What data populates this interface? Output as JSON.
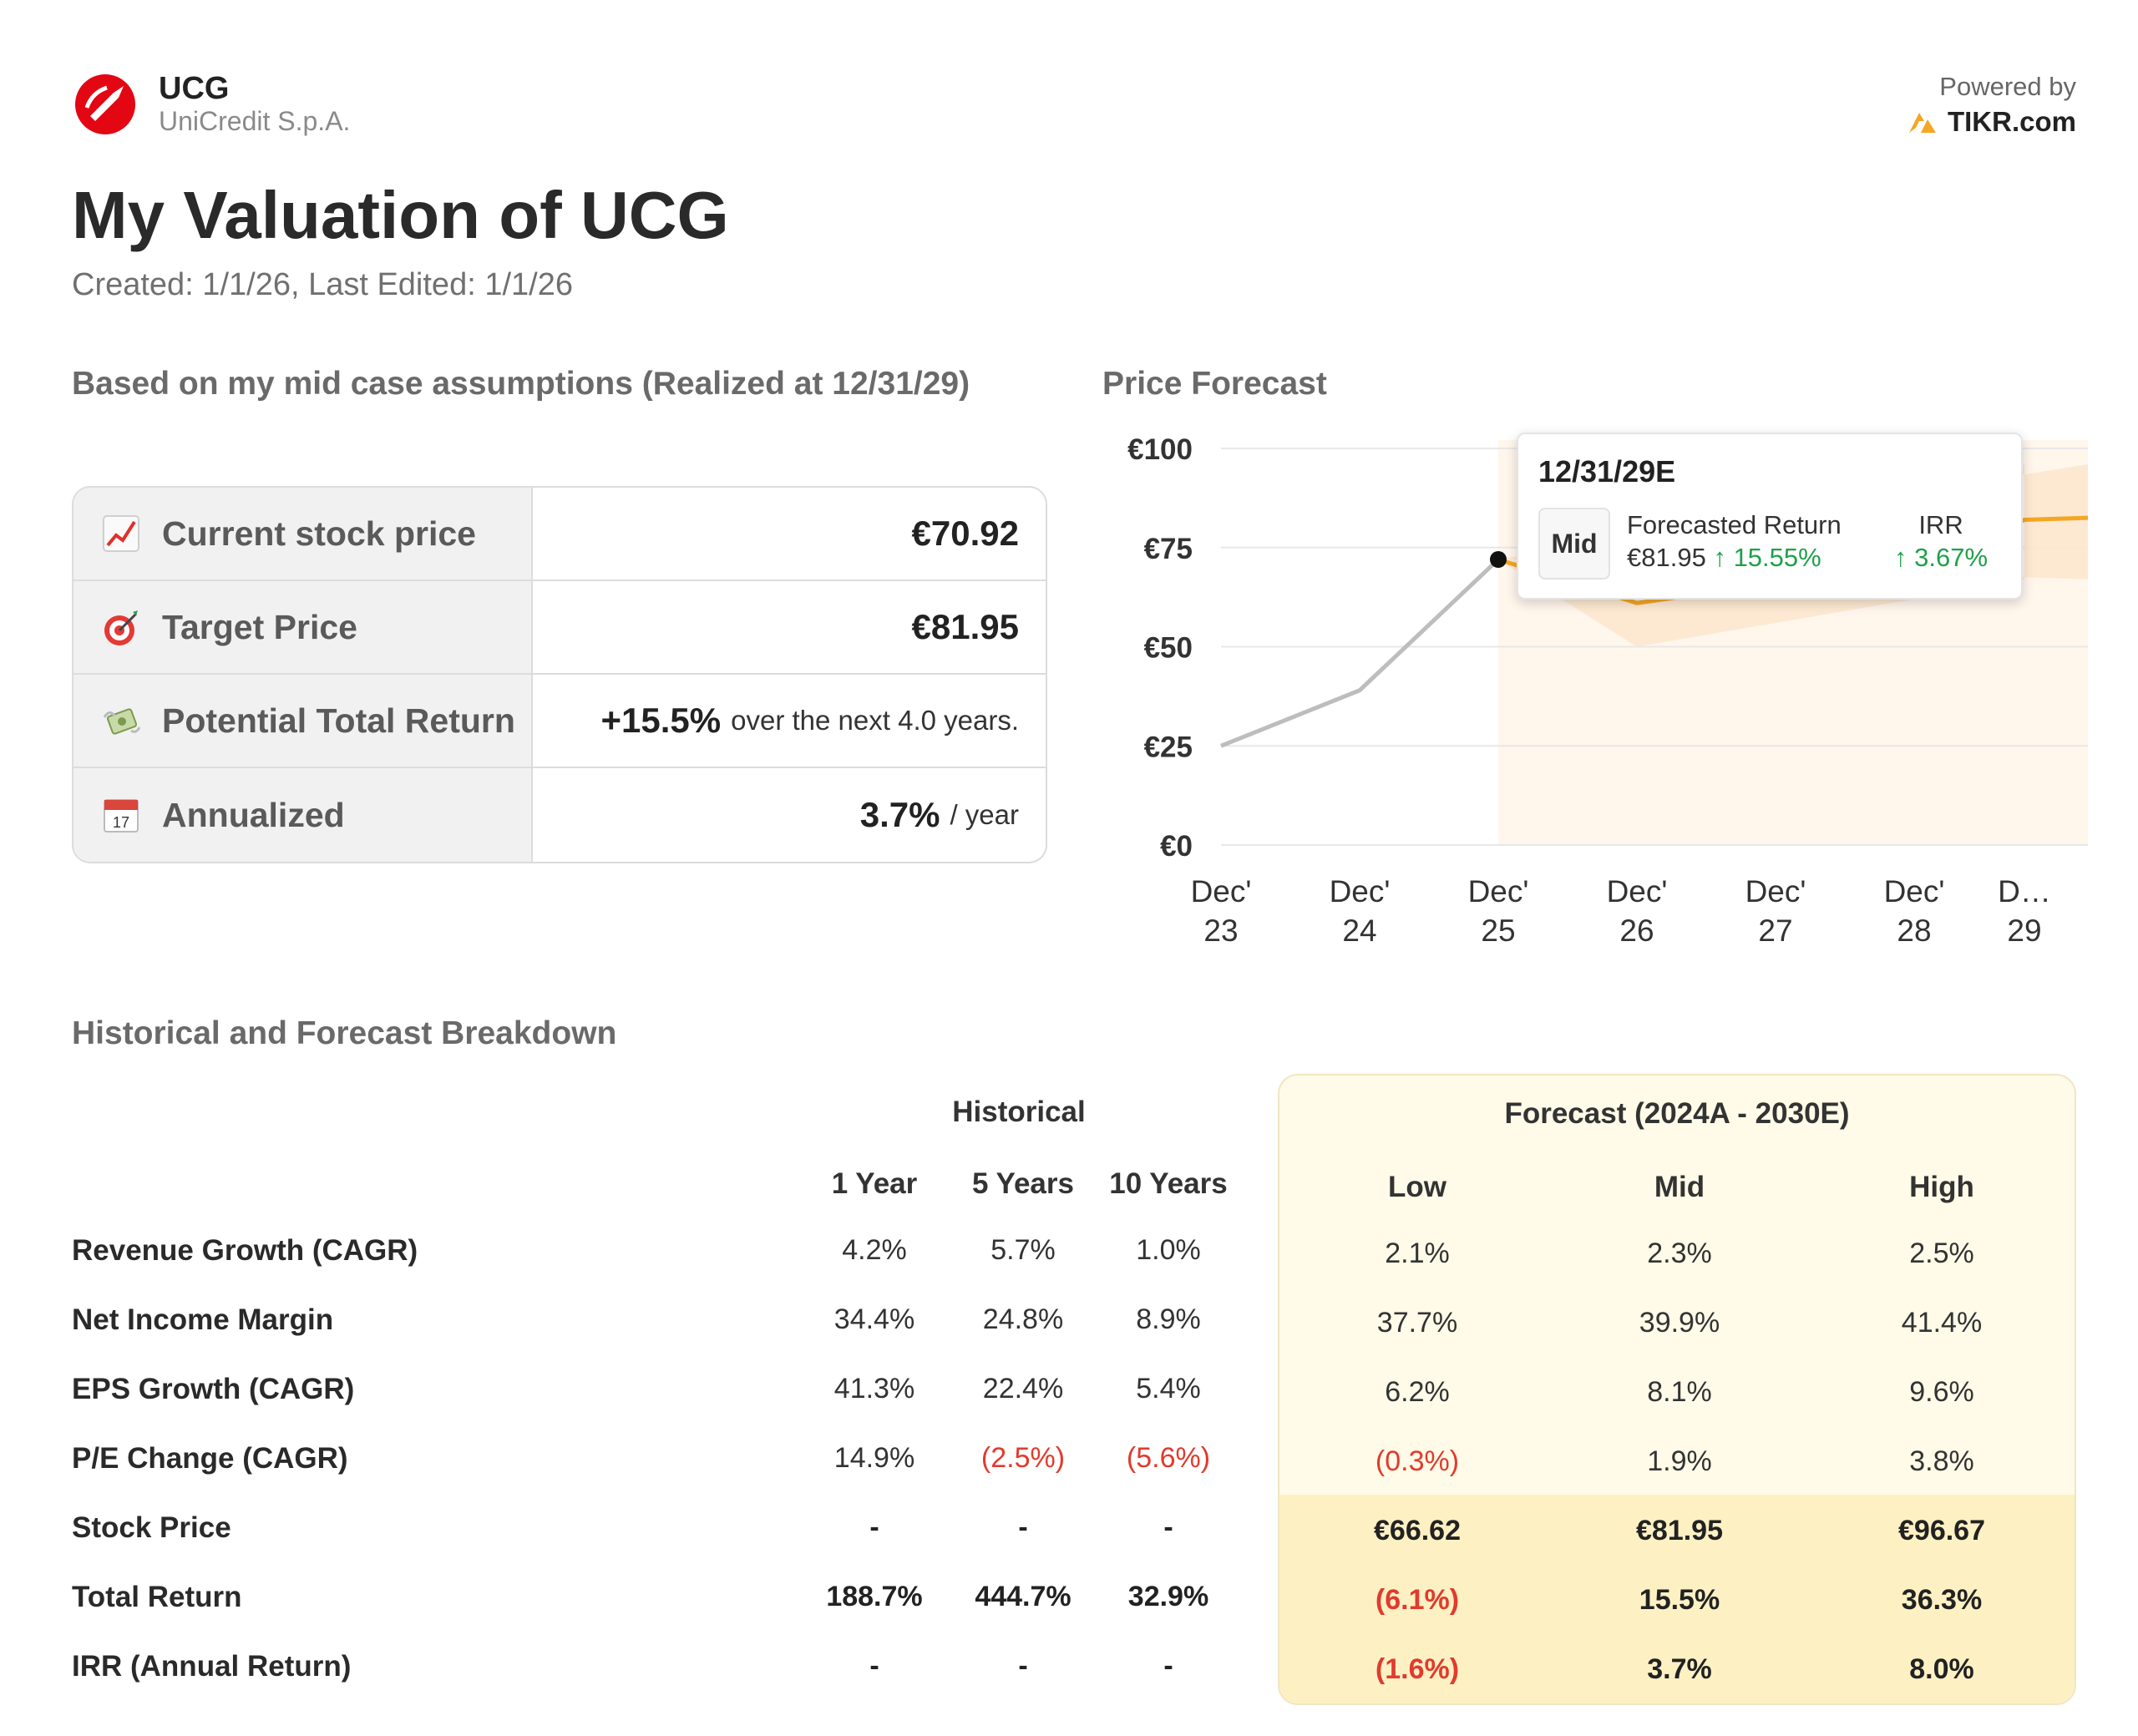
{
  "header": {
    "ticker": "UCG",
    "company": "UniCredit S.p.A.",
    "powered_by": "Powered by",
    "provider": "TIKR.com",
    "brand_color": "#e30613",
    "provider_accent": "#f5a623"
  },
  "title": "My Valuation of UCG",
  "subtitle": "Created: 1/1/26, Last Edited: 1/1/26",
  "summary": {
    "heading": "Based on my mid case assumptions (Realized at 12/31/29)",
    "rows": [
      {
        "icon": "chart-increasing-icon",
        "label": "Current stock price",
        "value": "€70.92",
        "suffix": ""
      },
      {
        "icon": "target-icon",
        "label": "Target Price",
        "value": "€81.95",
        "suffix": ""
      },
      {
        "icon": "money-with-wings-icon",
        "label": "Potential Total Return",
        "value": "+15.5%",
        "suffix": "over the next 4.0 years."
      },
      {
        "icon": "calendar-icon",
        "label": "Annualized",
        "value": "3.7%",
        "suffix": "/ year"
      }
    ]
  },
  "chart_heading": "Price Forecast",
  "chart_data": {
    "type": "line",
    "x": [
      "Dec' 23",
      "Dec' 24",
      "Dec' 25",
      "Dec' 26",
      "Dec' 27",
      "Dec' 28",
      "D… 29"
    ],
    "y_ticks": [
      "€0",
      "€25",
      "€50",
      "€75",
      "€100"
    ],
    "ylim": [
      0,
      100
    ],
    "series": [
      {
        "name": "",
        "values": [
          25,
          39,
          72,
          null,
          null,
          null,
          null
        ],
        "color": "#bdbdbd"
      },
      {
        "name": "Mid",
        "values": [
          null,
          null,
          72,
          61,
          66,
          71,
          82
        ],
        "color": "#f5a623"
      }
    ],
    "forecast_band": {
      "low": [
        72,
        50,
        56,
        62,
        67
      ],
      "high": [
        72,
        69,
        74,
        82,
        96
      ],
      "color": "#fde8cf"
    },
    "grid": true,
    "legend": "none"
  },
  "tooltip": {
    "date": "12/31/29E",
    "case": "Mid",
    "return_label": "Forecasted Return",
    "price": "€81.95",
    "return_pct": "↑ 15.55%",
    "irr_label": "IRR",
    "irr_value": "↑ 3.67%"
  },
  "breakdown": {
    "heading": "Historical and Forecast Breakdown",
    "historical_label": "Historical",
    "forecast_label": "Forecast (2024A - 2030E)",
    "columns": [
      "1 Year",
      "5 Years",
      "10 Years",
      "Low",
      "Mid",
      "High"
    ],
    "rows": [
      {
        "label": "Revenue Growth (CAGR)",
        "values": [
          "4.2%",
          "5.7%",
          "1.0%",
          "2.1%",
          "2.3%",
          "2.5%"
        ],
        "neg": [],
        "bold": false
      },
      {
        "label": "Net Income Margin",
        "values": [
          "34.4%",
          "24.8%",
          "8.9%",
          "37.7%",
          "39.9%",
          "41.4%"
        ],
        "neg": [],
        "bold": false
      },
      {
        "label": "EPS Growth (CAGR)",
        "values": [
          "41.3%",
          "22.4%",
          "5.4%",
          "6.2%",
          "8.1%",
          "9.6%"
        ],
        "neg": [],
        "bold": false
      },
      {
        "label": "P/E Change (CAGR)",
        "values": [
          "14.9%",
          "(2.5%)",
          "(5.6%)",
          "(0.3%)",
          "1.9%",
          "3.8%"
        ],
        "neg": [
          1,
          2,
          3
        ],
        "bold": false
      },
      {
        "label": "Stock Price",
        "values": [
          "-",
          "-",
          "-",
          "€66.62",
          "€81.95",
          "€96.67"
        ],
        "neg": [],
        "bold": true
      },
      {
        "label": "Total Return",
        "values": [
          "188.7%",
          "444.7%",
          "32.9%",
          "(6.1%)",
          "15.5%",
          "36.3%"
        ],
        "neg": [
          3
        ],
        "bold": true
      },
      {
        "label": "IRR (Annual Return)",
        "values": [
          "-",
          "-",
          "-",
          "(1.6%)",
          "3.7%",
          "8.0%"
        ],
        "neg": [
          3
        ],
        "bold": true
      }
    ]
  }
}
